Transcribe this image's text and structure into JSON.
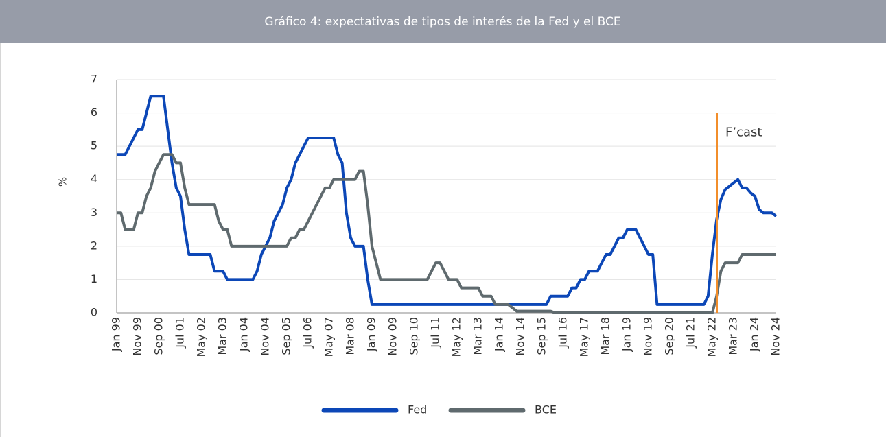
{
  "chart_data": {
    "type": "line",
    "title": "Gráfico 4: expectativas de tipos de interés de la Fed y el BCE",
    "y_label": "%",
    "annotations": [
      {
        "text": "F’cast",
        "color": "#f28e2b"
      }
    ],
    "categories": [
      "Jan 99",
      null,
      null,
      null,
      null,
      "Nov 99",
      null,
      null,
      null,
      null,
      "Sep 00",
      null,
      null,
      null,
      null,
      "Jul 01",
      null,
      null,
      null,
      null,
      "May 02",
      null,
      null,
      null,
      null,
      "Mar 03",
      null,
      null,
      null,
      null,
      "Jan 04",
      null,
      null,
      null,
      null,
      "Nov 04",
      null,
      null,
      null,
      null,
      "Sep 05",
      null,
      null,
      null,
      null,
      "Jul 06",
      null,
      null,
      null,
      null,
      "May 07",
      null,
      null,
      null,
      null,
      "Mar 08",
      null,
      null,
      null,
      null,
      "Jan 09",
      null,
      null,
      null,
      null,
      "Nov 09",
      null,
      null,
      null,
      null,
      "Sep 10",
      null,
      null,
      null,
      null,
      "Jul 11",
      null,
      null,
      null,
      null,
      "May 12",
      null,
      null,
      null,
      null,
      "Mar 13",
      null,
      null,
      null,
      null,
      "Jan 14",
      null,
      null,
      null,
      null,
      "Nov 14",
      null,
      null,
      null,
      null,
      "Sep 15",
      null,
      null,
      null,
      null,
      "Jul 16",
      null,
      null,
      null,
      null,
      "May 17",
      null,
      null,
      null,
      null,
      "Mar 18",
      null,
      null,
      null,
      null,
      "Jan 19",
      null,
      null,
      null,
      null,
      "Nov 19",
      null,
      null,
      null,
      null,
      "Sep 20",
      null,
      null,
      null,
      null,
      "Jul 21",
      null,
      null,
      null,
      null,
      "May 22",
      null,
      null,
      null,
      null,
      "Mar 23",
      null,
      null,
      null,
      null,
      "Jan 24",
      null,
      null,
      null,
      null,
      "Nov 24"
    ],
    "series": [
      {
        "name": "Fed",
        "color": "#0c47b7",
        "values": [
          4.75,
          4.75,
          4.75,
          5,
          5.25,
          5.5,
          5.5,
          6,
          6.5,
          6.5,
          6.5,
          6.5,
          5.5,
          4.5,
          3.75,
          3.5,
          2.5,
          1.75,
          1.75,
          1.75,
          1.75,
          1.75,
          1.75,
          1.25,
          1.25,
          1.25,
          1,
          1,
          1,
          1,
          1,
          1,
          1,
          1.25,
          1.75,
          2,
          2.25,
          2.75,
          3,
          3.25,
          3.75,
          4,
          4.5,
          4.75,
          5,
          5.25,
          5.25,
          5.25,
          5.25,
          5.25,
          5.25,
          5.25,
          4.75,
          4.5,
          3,
          2.25,
          2,
          2,
          2,
          1,
          0.25,
          0.25,
          0.25,
          0.25,
          0.25,
          0.25,
          0.25,
          0.25,
          0.25,
          0.25,
          0.25,
          0.25,
          0.25,
          0.25,
          0.25,
          0.25,
          0.25,
          0.25,
          0.25,
          0.25,
          0.25,
          0.25,
          0.25,
          0.25,
          0.25,
          0.25,
          0.25,
          0.25,
          0.25,
          0.25,
          0.25,
          0.25,
          0.25,
          0.25,
          0.25,
          0.25,
          0.25,
          0.25,
          0.25,
          0.25,
          0.25,
          0.25,
          0.5,
          0.5,
          0.5,
          0.5,
          0.5,
          0.75,
          0.75,
          1,
          1,
          1.25,
          1.25,
          1.25,
          1.5,
          1.75,
          1.75,
          2,
          2.25,
          2.25,
          2.5,
          2.5,
          2.5,
          2.25,
          2,
          1.75,
          1.75,
          0.25,
          0.25,
          0.25,
          0.25,
          0.25,
          0.25,
          0.25,
          0.25,
          0.25,
          0.25,
          0.25,
          0.25,
          0.5,
          1.75,
          2.8,
          3.4,
          3.7,
          3.8,
          3.9,
          4,
          3.75,
          3.75,
          3.6,
          3.5,
          3.1,
          3,
          3,
          3,
          2.9
        ]
      },
      {
        "name": "BCE",
        "color": "#5f6a6e",
        "values": [
          3,
          3,
          2.5,
          2.5,
          2.5,
          3,
          3,
          3.5,
          3.75,
          4.25,
          4.5,
          4.75,
          4.75,
          4.75,
          4.5,
          4.5,
          3.75,
          3.25,
          3.25,
          3.25,
          3.25,
          3.25,
          3.25,
          3.25,
          2.75,
          2.5,
          2.5,
          2,
          2,
          2,
          2,
          2,
          2,
          2,
          2,
          2,
          2,
          2,
          2,
          2,
          2,
          2.25,
          2.25,
          2.5,
          2.5,
          2.75,
          3,
          3.25,
          3.5,
          3.75,
          3.75,
          4,
          4,
          4,
          4,
          4,
          4,
          4.25,
          4.25,
          3.25,
          2,
          1.5,
          1,
          1,
          1,
          1,
          1,
          1,
          1,
          1,
          1,
          1,
          1,
          1,
          1.25,
          1.5,
          1.5,
          1.25,
          1,
          1,
          1,
          0.75,
          0.75,
          0.75,
          0.75,
          0.75,
          0.5,
          0.5,
          0.5,
          0.25,
          0.25,
          0.25,
          0.25,
          0.15,
          0.05,
          0.05,
          0.05,
          0.05,
          0.05,
          0.05,
          0.05,
          0.05,
          0.05,
          0,
          0,
          0,
          0,
          0,
          0,
          0,
          0,
          0,
          0,
          0,
          0,
          0,
          0,
          0,
          0,
          0,
          0,
          0,
          0,
          0,
          0,
          0,
          0,
          0,
          0,
          0,
          0,
          0,
          0,
          0,
          0,
          0,
          0,
          0,
          0,
          0,
          0,
          0.5,
          1.25,
          1.5,
          1.5,
          1.5,
          1.5,
          1.75,
          1.75,
          1.75,
          1.75,
          1.75,
          1.75,
          1.75,
          1.75,
          1.75
        ]
      }
    ],
    "ylim": [
      0,
      7
    ],
    "yticks": [
      0,
      1,
      2,
      3,
      4,
      5,
      6,
      7
    ],
    "grid": true,
    "legend": "bottom"
  }
}
